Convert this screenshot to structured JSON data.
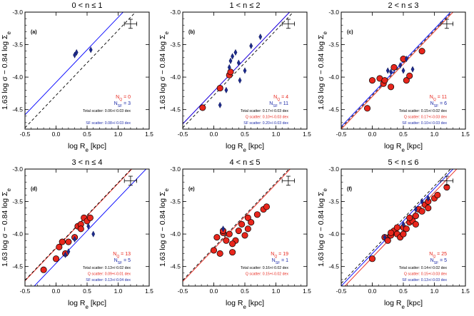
{
  "chart_data": [
    {
      "type": "scatter",
      "panel_label": "(a)",
      "title": "0 < n ≤ 1",
      "xlabel": "log R_e [kpc]",
      "ylabel": "1.63 log σ − 0.84 log Σ_e",
      "xlim": [
        -0.5,
        1.5
      ],
      "ylim": [
        -4.8,
        -3.0
      ],
      "xticks": [
        "-0.5",
        "0.0",
        "0.5",
        "1.0",
        "1.5"
      ],
      "yticks": [
        "-3.0",
        "-3.5",
        "-4.0",
        "-4.5"
      ],
      "counts": {
        "nq": "N_Q = 0",
        "nsf": "N_SF = 3"
      },
      "scatter_text": {
        "total": "Total scatter: 0.06+/-0.03 dex",
        "sf": "SF scatter: 0.08+/-0.03 dex"
      },
      "series": [
        {
          "name": "Quiescent",
          "marker": "circle",
          "color": "#e8261c",
          "x": [],
          "y": []
        },
        {
          "name": "Star-forming",
          "marker": "diamond",
          "color": "#1c2a8c",
          "x": [
            0.3,
            0.33,
            0.56
          ],
          "y": [
            -3.66,
            -3.62,
            -3.58
          ]
        }
      ],
      "lines": [
        {
          "name": "SF fit",
          "style": "solid",
          "color": "#0000ff",
          "intercept": -4.08,
          "slope": 1.0
        },
        {
          "name": "Reference",
          "style": "dashed",
          "color": "#000000",
          "intercept": -4.28,
          "slope": 1.0
        }
      ],
      "errorbar": {
        "x": 1.2,
        "y": -3.18,
        "xerr": 0.1,
        "yerr": 0.07
      }
    },
    {
      "type": "scatter",
      "panel_label": "(b)",
      "title": "1 < n ≤ 2",
      "xlabel": "log R_e [kpc]",
      "ylabel": "1.63 log σ − 0.84 log Σ_e",
      "xlim": [
        -0.5,
        1.5
      ],
      "ylim": [
        -4.8,
        -3.0
      ],
      "xticks": [
        "-0.5",
        "0.0",
        "0.5",
        "1.0",
        "1.5"
      ],
      "yticks": [
        "-3.0",
        "-3.5",
        "-4.0",
        "-4.5"
      ],
      "counts": {
        "nq": "N_Q = 4",
        "nsf": "N_SF = 11"
      },
      "scatter_text": {
        "total": "Total scatter: 0.17+/-0.03 dex",
        "q": "Q scatter: 0.10+/-0.03 dex",
        "sf": "SF scatter: 0.20+/-0.03 dex"
      },
      "series": [
        {
          "name": "Quiescent",
          "marker": "circle",
          "color": "#e8261c",
          "x": [
            -0.18,
            0.1,
            0.25,
            0.27
          ],
          "y": [
            -4.47,
            -4.17,
            -3.97,
            -3.92
          ]
        },
        {
          "name": "Star-forming",
          "marker": "diamond",
          "color": "#1c2a8c",
          "x": [
            0.1,
            0.2,
            0.25,
            0.27,
            0.3,
            0.35,
            0.4,
            0.5,
            0.6,
            0.75,
            0.42
          ],
          "y": [
            -4.43,
            -4.2,
            -3.85,
            -3.75,
            -3.68,
            -3.62,
            -3.78,
            -3.9,
            -3.52,
            -3.38,
            -4.05
          ]
        }
      ],
      "lines": [
        {
          "name": "Q fit",
          "style": "solid",
          "color": "#e8261c",
          "intercept": -4.22,
          "slope": 1.0
        },
        {
          "name": "SF fit",
          "style": "solid",
          "color": "#0000ff",
          "intercept": -4.22,
          "slope": 1.0
        },
        {
          "name": "Reference",
          "style": "dashed",
          "color": "#000000",
          "intercept": -4.28,
          "slope": 1.0
        }
      ],
      "errorbar": {
        "x": 1.2,
        "y": -3.18,
        "xerr": 0.1,
        "yerr": 0.07
      }
    },
    {
      "type": "scatter",
      "panel_label": "(c)",
      "title": "2 < n ≤ 3",
      "xlabel": "log R_e [kpc]",
      "ylabel": "1.63 log σ − 0.84 log Σ_e",
      "xlim": [
        -0.5,
        1.5
      ],
      "ylim": [
        -4.8,
        -3.0
      ],
      "xticks": [
        "-0.5",
        "0.0",
        "0.5",
        "1.0",
        "1.5"
      ],
      "yticks": [
        "-3.0",
        "-3.5",
        "-4.0",
        "-4.5"
      ],
      "counts": {
        "nq": "N_Q = 11",
        "nsf": "N_SF = 6"
      },
      "scatter_text": {
        "total": "Total scatter: 0.15+/-0.02 dex",
        "q": "Q scatter: 0.17+/-0.03 dex",
        "sf": "SF scatter: 0.10+/-0.03 dex"
      },
      "series": [
        {
          "name": "Quiescent",
          "marker": "circle",
          "color": "#e8261c",
          "x": [
            -0.08,
            0.0,
            0.12,
            0.18,
            0.2,
            0.3,
            0.35,
            0.5,
            0.55,
            0.6,
            0.8
          ],
          "y": [
            -4.48,
            -4.05,
            -4.02,
            -4.1,
            -4.05,
            -4.15,
            -3.85,
            -3.72,
            -4.05,
            -3.98,
            -3.6
          ]
        },
        {
          "name": "Star-forming",
          "marker": "diamond",
          "color": "#1c2a8c",
          "x": [
            0.25,
            0.3,
            0.45,
            0.5,
            0.55,
            0.65
          ],
          "y": [
            -3.9,
            -3.92,
            -3.82,
            -3.9,
            -3.72,
            -3.88
          ]
        }
      ],
      "lines": [
        {
          "name": "Q fit",
          "style": "solid",
          "color": "#e8261c",
          "intercept": -4.3,
          "slope": 1.0
        },
        {
          "name": "SF fit",
          "style": "solid",
          "color": "#0000ff",
          "intercept": -4.26,
          "slope": 1.0
        },
        {
          "name": "Reference",
          "style": "dashed",
          "color": "#000000",
          "intercept": -4.28,
          "slope": 1.0
        }
      ],
      "errorbar": {
        "x": 1.2,
        "y": -3.18,
        "xerr": 0.1,
        "yerr": 0.07
      }
    },
    {
      "type": "scatter",
      "panel_label": "(d)",
      "title": "3 < n ≤ 4",
      "xlabel": "log R_e [kpc]",
      "ylabel": "1.63 log σ − 0.84 log Σ_e",
      "xlim": [
        -0.5,
        1.5
      ],
      "ylim": [
        -4.8,
        -3.0
      ],
      "xticks": [
        "-0.5",
        "0.0",
        "0.5",
        "1.0",
        "1.5"
      ],
      "yticks": [
        "-3.0",
        "-3.5",
        "-4.0",
        "-4.5"
      ],
      "counts": {
        "nq": "N_Q = 13",
        "nsf": "N_SF = 5"
      },
      "scatter_text": {
        "total": "Total scatter: 0.13+/-0.02 dex",
        "q": "Q scatter: 0.09+/-0.01 dex",
        "sf": "SF scatter: 0.13+/-0.04 dex"
      },
      "series": [
        {
          "name": "Quiescent",
          "marker": "circle",
          "color": "#e8261c",
          "x": [
            -0.2,
            0.0,
            0.05,
            0.1,
            0.15,
            0.3,
            0.35,
            0.4,
            0.45,
            0.5,
            0.55,
            0.4,
            0.2
          ],
          "y": [
            -4.55,
            -4.38,
            -4.2,
            -4.12,
            -4.3,
            -4.05,
            -3.88,
            -3.85,
            -3.75,
            -3.8,
            -3.75,
            -3.92,
            -4.12
          ]
        },
        {
          "name": "Star-forming",
          "marker": "diamond",
          "color": "#1c2a8c",
          "x": [
            0.15,
            0.2,
            0.3,
            0.52,
            0.6
          ],
          "y": [
            -4.32,
            -4.27,
            -4.08,
            -3.88,
            -4.0
          ]
        }
      ],
      "lines": [
        {
          "name": "Q fit",
          "style": "solid",
          "color": "#e8261c",
          "intercept": -4.22,
          "slope": 1.0
        },
        {
          "name": "SF fit",
          "style": "solid",
          "color": "#0000ff",
          "intercept": -4.45,
          "slope": 1.0
        },
        {
          "name": "Reference",
          "style": "dashed",
          "color": "#000000",
          "intercept": -4.21,
          "slope": 1.0
        }
      ],
      "errorbar": {
        "x": 1.2,
        "y": -3.18,
        "xerr": 0.1,
        "yerr": 0.07
      }
    },
    {
      "type": "scatter",
      "panel_label": "(e)",
      "title": "4 < n ≤ 5",
      "xlabel": "log R_e [kpc]",
      "ylabel": "1.63 log σ − 0.84 log Σ_e",
      "xlim": [
        -0.5,
        1.5
      ],
      "ylim": [
        -4.8,
        -3.0
      ],
      "xticks": [
        "-0.5",
        "0.0",
        "0.5",
        "1.0",
        "1.5"
      ],
      "yticks": [
        "-3.0",
        "-3.5",
        "-4.0",
        "-4.5"
      ],
      "counts": {
        "nq": "N_Q = 19",
        "nsf": "N_SF = 1"
      },
      "scatter_text": {
        "total": "Total scatter: 0.16+/-0.02 dex",
        "q": "Q scatter: 0.15+/-0.02 dex"
      },
      "series": [
        {
          "name": "Quiescent",
          "marker": "circle",
          "color": "#e8261c",
          "x": [
            0.0,
            0.05,
            0.1,
            0.15,
            0.2,
            0.25,
            0.3,
            0.35,
            0.4,
            0.45,
            0.5,
            0.55,
            0.6,
            0.7,
            0.8,
            0.85,
            0.3,
            0.15,
            0.55
          ],
          "y": [
            -4.25,
            -4.05,
            -4.3,
            -3.98,
            -4.1,
            -4.0,
            -4.28,
            -4.1,
            -3.95,
            -3.85,
            -4.02,
            -3.75,
            -3.82,
            -3.7,
            -3.62,
            -3.58,
            -4.15,
            -3.95,
            -3.92
          ]
        },
        {
          "name": "Star-forming",
          "marker": "diamond",
          "color": "#1c2a8c",
          "x": [
            0.15
          ],
          "y": [
            -3.92
          ]
        }
      ],
      "lines": [
        {
          "name": "Q fit",
          "style": "solid",
          "color": "#e8261c",
          "intercept": -4.23,
          "slope": 1.0
        },
        {
          "name": "Reference",
          "style": "dashed",
          "color": "#000000",
          "intercept": -4.21,
          "slope": 1.0
        }
      ],
      "errorbar": {
        "x": 1.2,
        "y": -3.18,
        "xerr": 0.1,
        "yerr": 0.07
      }
    },
    {
      "type": "scatter",
      "panel_label": "(f)",
      "title": "5 < n ≤ 6",
      "xlabel": "log R_e [kpc]",
      "ylabel": "1.63 log σ − 0.84 log Σ_e",
      "xlim": [
        -0.5,
        1.5
      ],
      "ylim": [
        -4.8,
        -3.0
      ],
      "xticks": [
        "-0.5",
        "0.0",
        "0.5",
        "1.0",
        "1.5"
      ],
      "yticks": [
        "-3.0",
        "-3.5",
        "-4.0",
        "-4.5"
      ],
      "counts": {
        "nq": "N_Q = 25",
        "nsf": "N_SF = 5"
      },
      "scatter_text": {
        "total": "Total scatter: 0.14+/-0.02 dex",
        "q": "Q scatter: 0.15+/-0.03 dex",
        "sf": "SF scatter: 0.13+/-0.03 dex"
      },
      "series": [
        {
          "name": "Quiescent",
          "marker": "circle",
          "color": "#e8261c",
          "x": [
            0.0,
            0.2,
            0.25,
            0.3,
            0.35,
            0.4,
            0.45,
            0.5,
            0.55,
            0.6,
            0.65,
            0.7,
            0.75,
            0.8,
            0.85,
            0.9,
            1.0,
            1.05,
            0.5,
            0.6,
            0.7,
            0.4,
            0.3,
            0.9,
            1.2
          ],
          "y": [
            -4.38,
            -4.05,
            -4.1,
            -4.02,
            -3.95,
            -4.0,
            -4.05,
            -3.9,
            -3.92,
            -3.82,
            -3.8,
            -3.72,
            -3.62,
            -3.65,
            -3.55,
            -3.6,
            -3.45,
            -3.4,
            -4.0,
            -3.75,
            -3.85,
            -3.9,
            -3.98,
            -3.5,
            -3.28
          ]
        },
        {
          "name": "Star-forming",
          "marker": "diamond",
          "color": "#1c2a8c",
          "x": [
            0.2,
            0.5,
            0.7,
            0.8,
            0.9
          ],
          "y": [
            -4.05,
            -3.85,
            -3.62,
            -3.5,
            -3.45
          ]
        }
      ],
      "lines": [
        {
          "name": "Q fit",
          "style": "solid",
          "color": "#e8261c",
          "intercept": -4.36,
          "slope": 1.0
        },
        {
          "name": "SF fit",
          "style": "solid",
          "color": "#0000ff",
          "intercept": -4.3,
          "slope": 1.0
        },
        {
          "name": "Reference",
          "style": "dashed",
          "color": "#000000",
          "intercept": -4.26,
          "slope": 1.0
        }
      ],
      "errorbar": {
        "x": 1.2,
        "y": -3.18,
        "xerr": 0.1,
        "yerr": 0.07
      }
    }
  ]
}
